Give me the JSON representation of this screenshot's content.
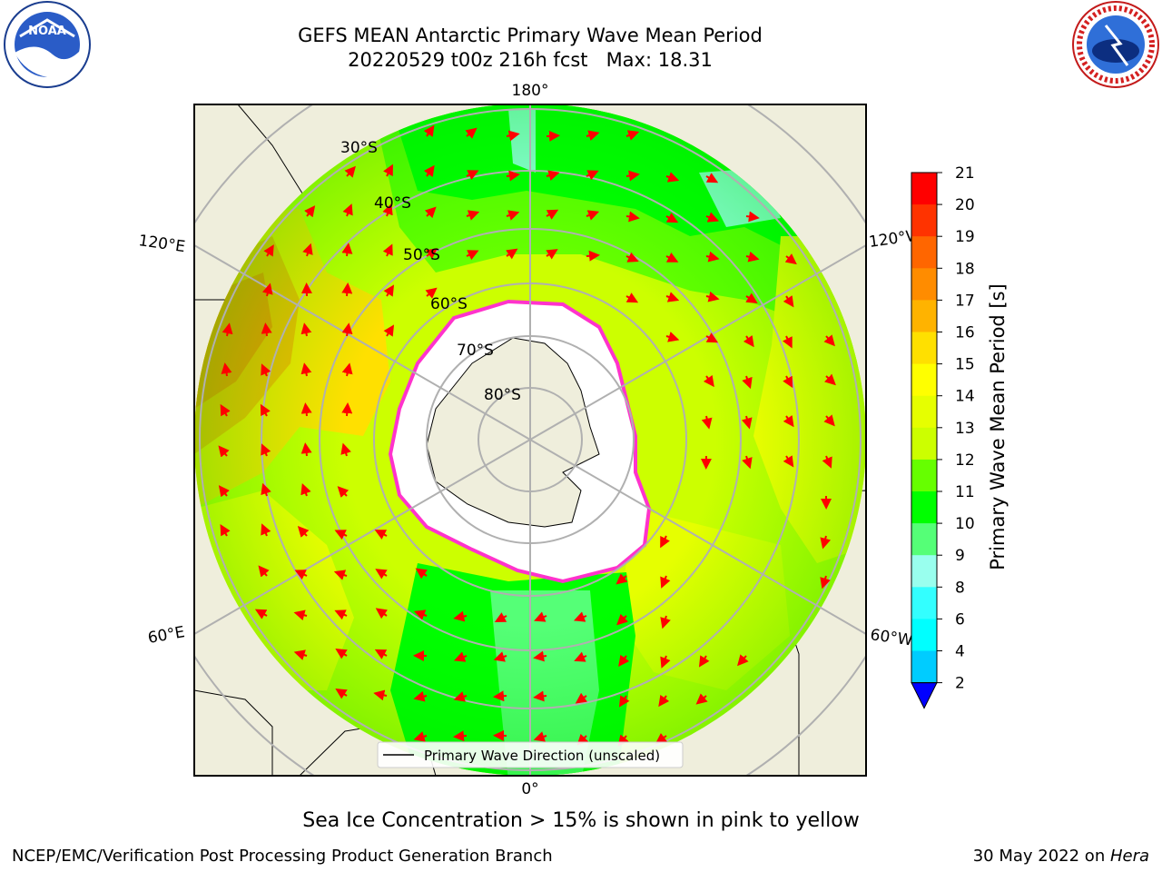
{
  "title": {
    "line1": "GEFS MEAN Antarctic Primary Wave Mean Period",
    "line2": "20220529 t00z 216h fcst   Max: 18.31"
  },
  "map": {
    "longitude_labels": {
      "top": "180°",
      "bottom": "0°",
      "upper_left": "120°E",
      "upper_right": "120°W",
      "lower_left": "60°E",
      "lower_right": "60°W"
    },
    "latitude_labels": [
      "30°S",
      "40°S",
      "50°S",
      "60°S",
      "70°S",
      "80°S"
    ],
    "legend": "Primary Wave Direction (unscaled)"
  },
  "colorbar": {
    "label": "Primary Wave Mean Period [s]",
    "ticks": [
      "21",
      "20",
      "19",
      "18",
      "17",
      "16",
      "15",
      "14",
      "13",
      "12",
      "11",
      "10",
      "9",
      "8",
      "6",
      "4",
      "2"
    ],
    "colors": [
      "#ff0000",
      "#ff3300",
      "#ff6600",
      "#ff8c00",
      "#ffb300",
      "#ffe000",
      "#ffff00",
      "#e6ff00",
      "#ccff00",
      "#66ff00",
      "#00ff00",
      "#55ff77",
      "#99ffee",
      "#33ffff",
      "#00ffff",
      "#00ccff",
      "#0066ff"
    ],
    "extend_color": "#0000ff"
  },
  "footer": {
    "note": "Sea Ice Concentration > 15% is shown in pink to yellow",
    "credit": "NCEP/EMC/Verification Post Processing Product Generation Branch",
    "date_prefix": "30 May 2022 on ",
    "date_host": "Hera"
  },
  "logos": {
    "noaa_text": "NOAA",
    "nws_text": "NATIONAL WEATHER SERVICE"
  }
}
